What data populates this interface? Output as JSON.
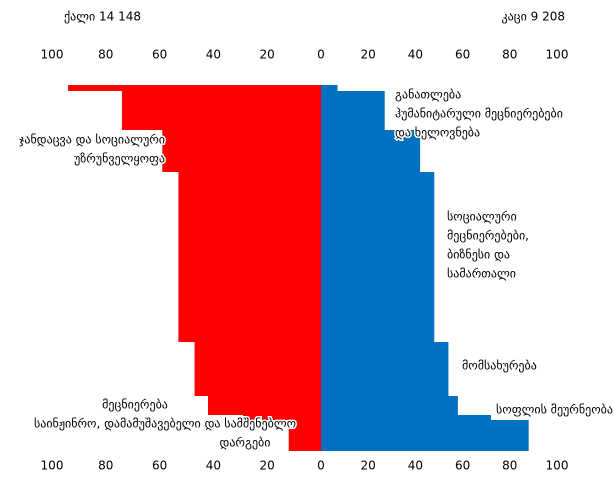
{
  "chart_data": {
    "type": "pyramid",
    "categories": [
      null,
      null,
      null,
      null,
      null,
      null,
      null,
      null
    ],
    "series": [
      {
        "name": "ქალი 14 148",
        "color": "#ff0000",
        "side": "left",
        "values": [
          94,
          74,
          59,
          53,
          47,
          42,
          29,
          12
        ]
      },
      {
        "name": "კაცი 9 208",
        "color": "#0070c0",
        "side": "right",
        "values": [
          7,
          27,
          42,
          48,
          54,
          58,
          72,
          88
        ]
      }
    ],
    "xlim_left": [
      100,
      0
    ],
    "xticks_left": [
      100,
      80,
      60,
      40,
      20,
      0
    ],
    "xlim_right": [
      0,
      100
    ],
    "xticks_right": [
      20,
      40,
      60,
      80,
      100
    ],
    "annotations": [
      [
        "განათლება",
        "ჰუმანიტარული მეცნიერებები",
        "და ხელოვნება"
      ],
      [
        "ჯანდაცვა და სოციალური",
        "უზრუნველყოფა"
      ],
      [
        "სოციალური",
        "მეცნიერებები,",
        "ბიზნესი და",
        "სამართალი"
      ],
      [
        "მომსახურება"
      ],
      [
        "სოფლის მეურნეობა"
      ],
      [
        "მეცნიერება",
        "საინჟინრო, დამამუშავებელი და სამშენებლო",
        "დარგები"
      ]
    ]
  }
}
